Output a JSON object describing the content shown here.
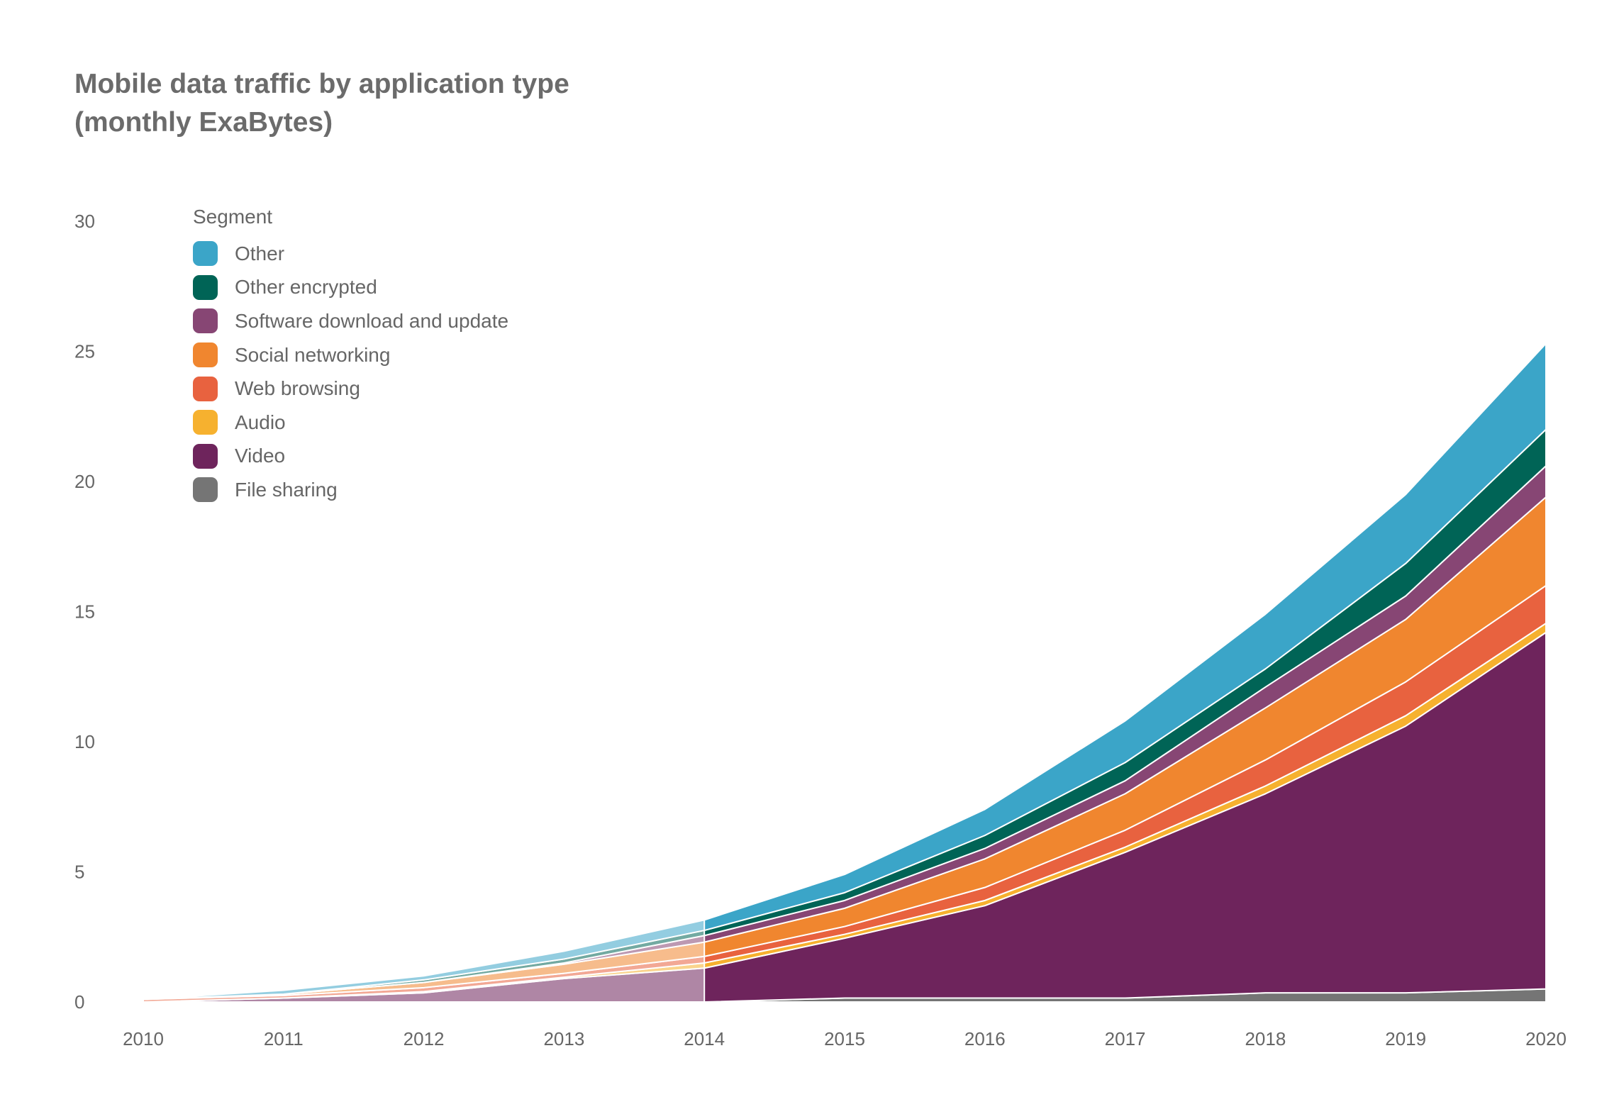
{
  "chart_data": {
    "type": "area",
    "stacked": true,
    "title": "Mobile data traffic by application type",
    "subtitle": "(monthly ExaBytes)",
    "xlabel": "",
    "ylabel": "",
    "x": [
      2010,
      2011,
      2012,
      2013,
      2014,
      2015,
      2016,
      2017,
      2018,
      2019,
      2020
    ],
    "x_ticks": [
      "2010",
      "2011",
      "2012",
      "2013",
      "2014",
      "2015",
      "2016",
      "2017",
      "2018",
      "2019",
      "2020"
    ],
    "ylim": [
      0,
      30
    ],
    "y_ticks": [
      "0",
      "5",
      "10",
      "15",
      "20",
      "25",
      "30"
    ],
    "grid": false,
    "legend_title": "Segment",
    "legend_position": "top-left",
    "faded_before": 2014,
    "series": [
      {
        "name": "File sharing",
        "color": "#757575",
        "values": [
          0,
          0,
          0,
          0,
          0,
          0.15,
          0.15,
          0.15,
          0.35,
          0.35,
          0.5
        ]
      },
      {
        "name": "Video",
        "color": "#6e245c",
        "values": [
          0,
          0.15,
          0.35,
          0.9,
          1.3,
          2.3,
          3.55,
          5.6,
          7.65,
          10.25,
          13.7
        ]
      },
      {
        "name": "Audio",
        "color": "#f6b12f",
        "values": [
          0,
          0,
          0.05,
          0.05,
          0.2,
          0.15,
          0.2,
          0.2,
          0.3,
          0.4,
          0.35
        ]
      },
      {
        "name": "Web browsing",
        "color": "#e8623f",
        "values": [
          0.1,
          0.1,
          0.15,
          0.15,
          0.25,
          0.3,
          0.5,
          0.65,
          1.0,
          1.3,
          1.45
        ]
      },
      {
        "name": "Social networking",
        "color": "#f0862f",
        "values": [
          0,
          0.05,
          0.2,
          0.35,
          0.55,
          0.7,
          1.1,
          1.4,
          2.0,
          2.4,
          3.4
        ]
      },
      {
        "name": "Software download and update",
        "color": "#874674",
        "values": [
          0,
          0,
          0,
          0.05,
          0.25,
          0.3,
          0.4,
          0.5,
          0.8,
          0.9,
          1.2
        ]
      },
      {
        "name": "Other encrypted",
        "color": "#006456",
        "values": [
          0,
          0,
          0.1,
          0.15,
          0.2,
          0.3,
          0.5,
          0.7,
          0.7,
          1.25,
          1.4
        ]
      },
      {
        "name": "Other",
        "color": "#3ba5c8",
        "values": [
          0,
          0.15,
          0.15,
          0.3,
          0.4,
          0.7,
          1.0,
          1.6,
          2.1,
          2.65,
          3.3
        ]
      }
    ]
  }
}
